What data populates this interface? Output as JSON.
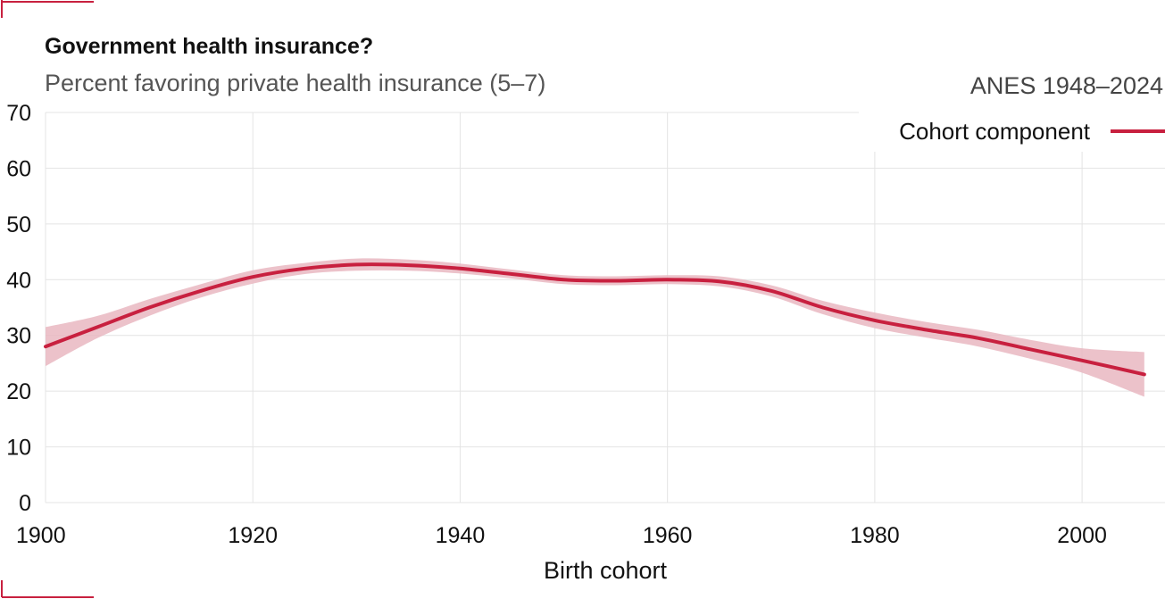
{
  "colors": {
    "accent": "#c8203f",
    "band": "#e9b7c1",
    "grid": "#e4e4e4"
  },
  "chart_data": {
    "type": "line",
    "title": "Government health insurance?",
    "subtitle": "Percent favoring private health insurance (5–7)",
    "source": "ANES 1948–2024",
    "xlabel": "Birth cohort",
    "ylabel": "",
    "xlim": [
      1900,
      2008
    ],
    "ylim": [
      0,
      70
    ],
    "xticks": [
      "1900",
      "1920",
      "1940",
      "1960",
      "1980",
      "2000"
    ],
    "yticks": [
      "0",
      "10",
      "20",
      "30",
      "40",
      "50",
      "60",
      "70"
    ],
    "grid": true,
    "legend_position": "top-right",
    "series": [
      {
        "name": "Cohort component",
        "x": [
          1900,
          1905,
          1910,
          1915,
          1920,
          1925,
          1930,
          1935,
          1940,
          1945,
          1950,
          1955,
          1960,
          1965,
          1970,
          1975,
          1980,
          1985,
          1990,
          1995,
          2000,
          2006
        ],
        "y": [
          28,
          31.5,
          35,
          38,
          40.5,
          42,
          42.7,
          42.6,
          42,
          41,
          40,
          39.8,
          40,
          39.7,
          38,
          35,
          32.7,
          31,
          29.5,
          27.5,
          25.5,
          23
        ],
        "lower": [
          24.5,
          29.5,
          33.5,
          36.8,
          39.3,
          41,
          41.6,
          41.6,
          41.1,
          40.2,
          39.2,
          39,
          39.2,
          38.8,
          37,
          33.8,
          31.3,
          29.6,
          28,
          25.8,
          23.3,
          19
        ],
        "upper": [
          31.5,
          33.5,
          36.5,
          39.2,
          41.7,
          43,
          43.8,
          43.6,
          42.9,
          41.8,
          40.8,
          40.6,
          40.8,
          40.6,
          39,
          36.2,
          34.1,
          32.4,
          31,
          29.2,
          27.7,
          27
        ]
      }
    ]
  }
}
